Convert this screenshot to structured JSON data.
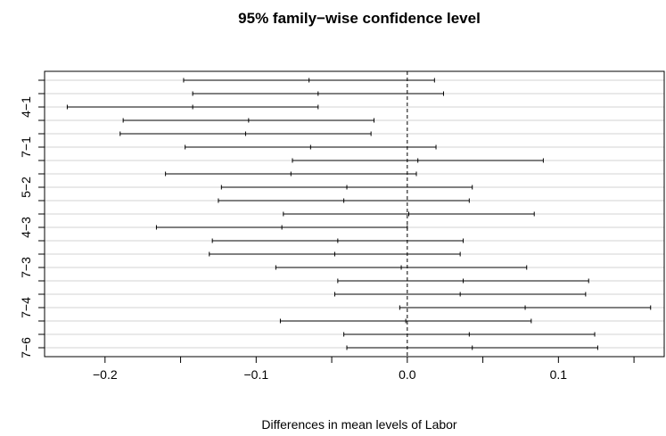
{
  "chart_data": {
    "type": "interval",
    "title": "95% family−wise confidence level",
    "xlabel": "Differences in mean levels of Labor",
    "ylabel": "",
    "xlim": [
      -0.24,
      0.17
    ],
    "x_ticks": [
      -0.2,
      -0.1,
      0.0,
      0.1
    ],
    "x_tick_labels": [
      "−0.2",
      "−0.1",
      "0.0",
      "0.1"
    ],
    "y_tick_labels": [
      "4−1",
      "7−1",
      "5−2",
      "4−3",
      "7−3",
      "7−4",
      "7−6"
    ],
    "y_tick_positions": [
      3,
      6,
      9,
      12,
      15,
      18,
      21
    ],
    "reference_line": 0,
    "grid": "horizontal",
    "intervals": [
      {
        "lwr": -0.148,
        "diff": -0.065,
        "upr": 0.018
      },
      {
        "lwr": -0.142,
        "diff": -0.059,
        "upr": 0.024
      },
      {
        "lwr": -0.225,
        "diff": -0.142,
        "upr": -0.059
      },
      {
        "lwr": -0.188,
        "diff": -0.105,
        "upr": -0.022
      },
      {
        "lwr": -0.19,
        "diff": -0.107,
        "upr": -0.024
      },
      {
        "lwr": -0.147,
        "diff": -0.064,
        "upr": 0.019
      },
      {
        "lwr": -0.076,
        "diff": 0.007,
        "upr": 0.09
      },
      {
        "lwr": -0.16,
        "diff": -0.077,
        "upr": 0.006
      },
      {
        "lwr": -0.123,
        "diff": -0.04,
        "upr": 0.043
      },
      {
        "lwr": -0.125,
        "diff": -0.042,
        "upr": 0.041
      },
      {
        "lwr": -0.082,
        "diff": 0.001,
        "upr": 0.084
      },
      {
        "lwr": -0.166,
        "diff": -0.083,
        "upr": 0.0
      },
      {
        "lwr": -0.129,
        "diff": -0.046,
        "upr": 0.037
      },
      {
        "lwr": -0.131,
        "diff": -0.048,
        "upr": 0.035
      },
      {
        "lwr": -0.087,
        "diff": -0.004,
        "upr": 0.079
      },
      {
        "lwr": -0.046,
        "diff": 0.037,
        "upr": 0.12
      },
      {
        "lwr": -0.048,
        "diff": 0.035,
        "upr": 0.118
      },
      {
        "lwr": -0.005,
        "diff": 0.078,
        "upr": 0.161
      },
      {
        "lwr": -0.084,
        "diff": -0.001,
        "upr": 0.082
      },
      {
        "lwr": -0.042,
        "diff": 0.041,
        "upr": 0.124
      },
      {
        "lwr": -0.04,
        "diff": 0.043,
        "upr": 0.126
      }
    ]
  }
}
